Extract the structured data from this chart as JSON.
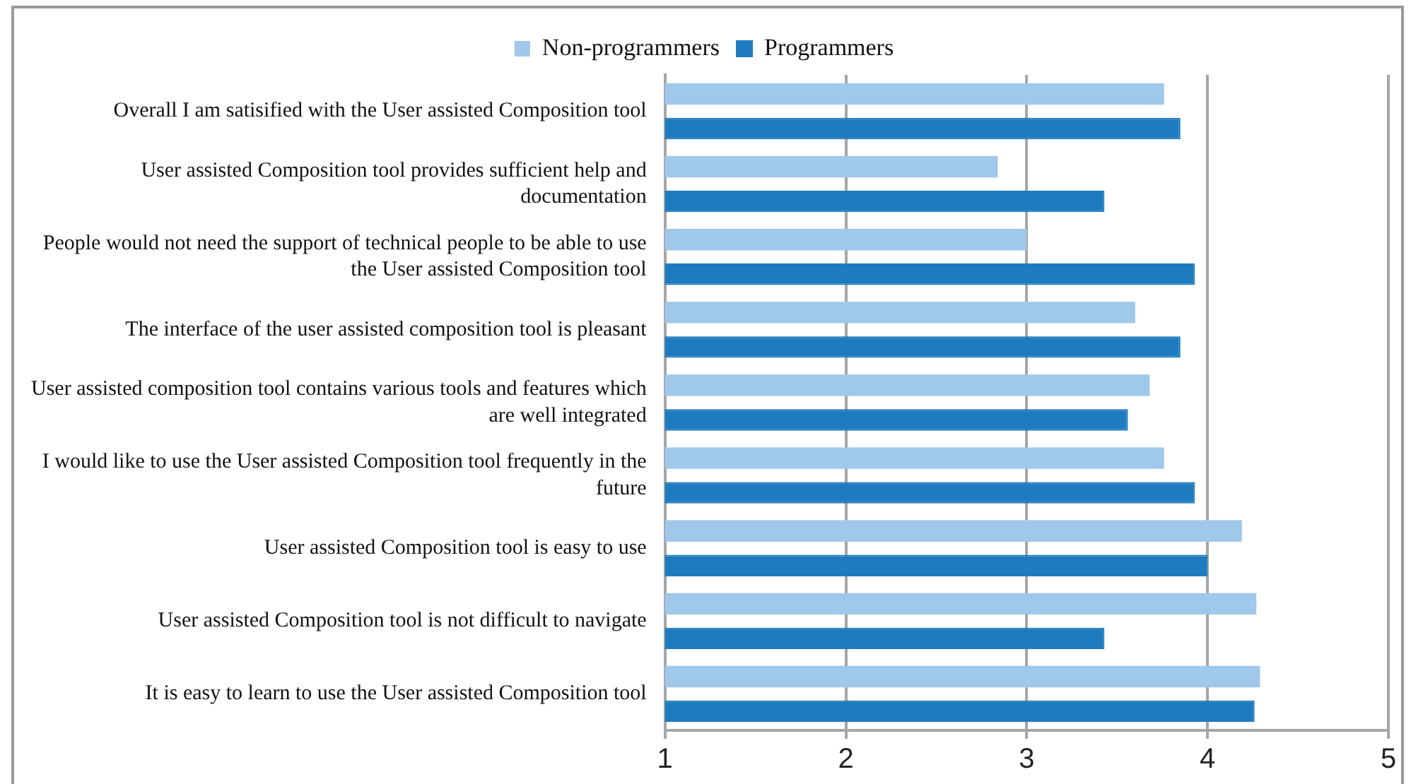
{
  "chart_data": {
    "type": "bar",
    "orientation": "horizontal",
    "categories": [
      "Overall I am satisified with the User assisted Composition tool",
      "User assisted Composition tool provides sufficient help and documentation",
      "People would not need the support of technical people to be able to use the User assisted Composition tool",
      "The interface of the user assisted composition tool is pleasant",
      "User assisted composition tool contains various tools and features which are well integrated",
      "I would like to use the User assisted Composition tool frequently in the future",
      "User assisted Composition tool is easy to use",
      "User assisted Composition tool is not difficult to navigate",
      "It is easy to learn to use the User assisted Composition tool"
    ],
    "series": [
      {
        "name": "Non-programmers",
        "color": "#9fc8ea",
        "values": [
          3.76,
          2.84,
          3.0,
          3.6,
          3.68,
          3.76,
          4.19,
          4.27,
          4.29
        ]
      },
      {
        "name": "Programmers",
        "color": "#1f7bbf",
        "values": [
          3.85,
          3.43,
          3.93,
          3.85,
          3.56,
          3.93,
          4.0,
          3.43,
          4.26
        ]
      }
    ],
    "xlim": [
      1,
      5
    ],
    "xticks": [
      1,
      2,
      3,
      4,
      5
    ],
    "grid": "x",
    "legend": "top"
  }
}
